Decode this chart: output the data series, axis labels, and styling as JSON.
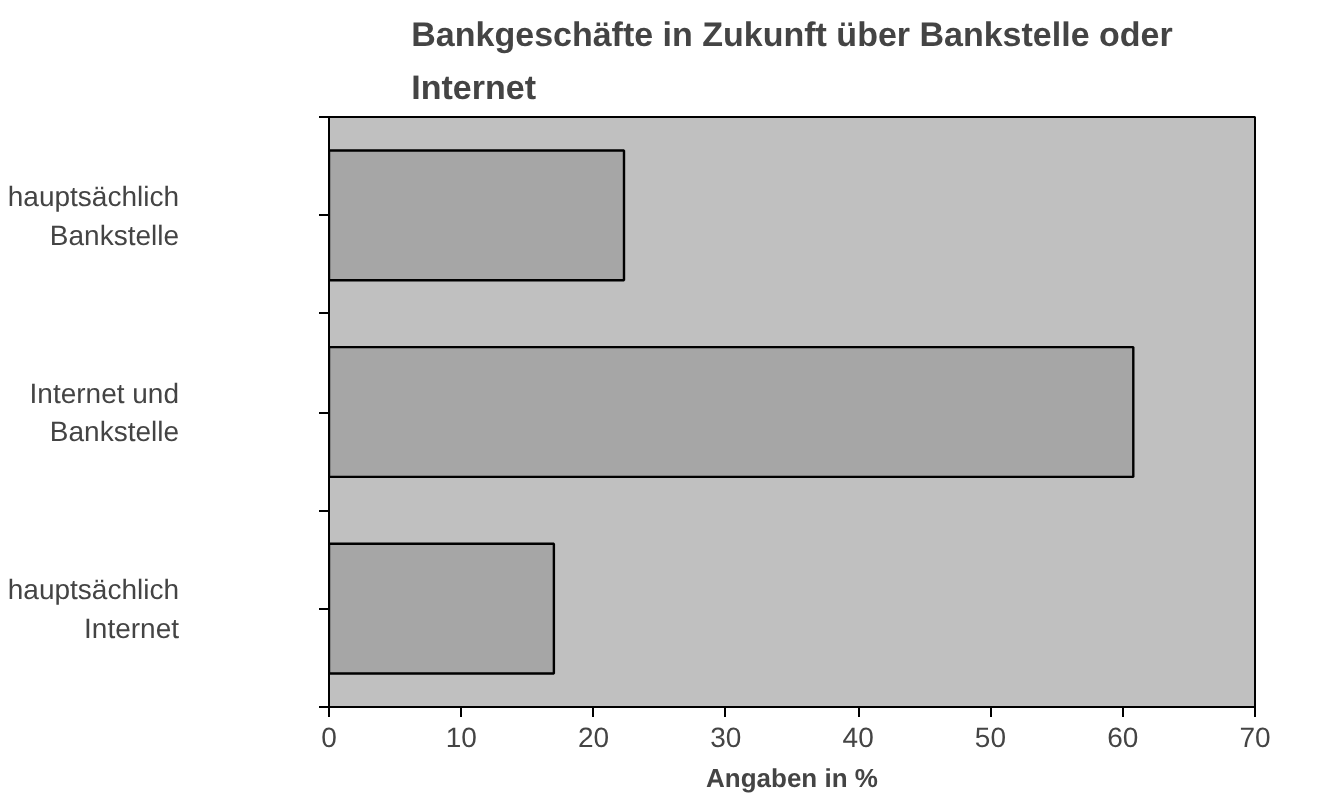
{
  "chart_data": {
    "type": "bar",
    "orientation": "horizontal",
    "title": "Bankgeschäfte in Zukunft über Bankstelle oder\nInternet",
    "xlabel": "Angaben in %",
    "categories": [
      "hauptsächlich\nBankstelle",
      "Internet und\nBankstelle",
      "hauptsächlich\nInternet"
    ],
    "values": [
      22.3,
      60.8,
      17.0
    ],
    "color": "#a6a6a6",
    "xlim": [
      0,
      70
    ],
    "xticks": [
      0,
      10,
      20,
      30,
      40,
      50,
      60,
      70
    ],
    "grid": false
  }
}
